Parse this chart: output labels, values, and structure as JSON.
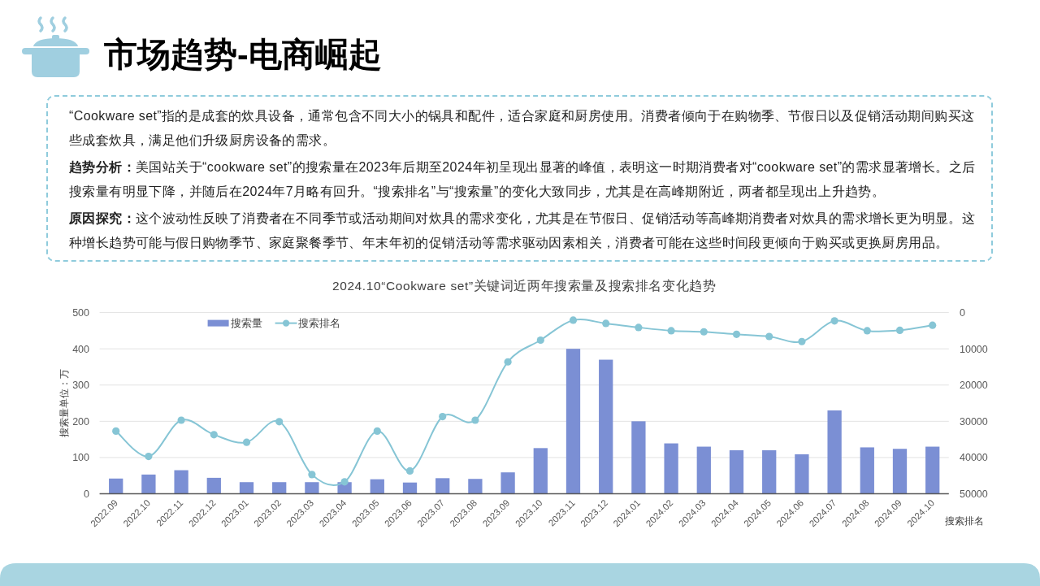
{
  "chart_data": [
    {
      "type": "other",
      "title": "市场趋势-电商崛起",
      "annotations": [
        "“Cookware set”指的是成套的炊具设备，通常包含不同大小的锅具和配件，适合家庭和厨房使用。消费者倾向于在购物季、节假日以及促销活动期间购买这些成套炊具，满足他们升级厨房设备的需求。",
        "趋势分析：美国站关于“cookware set”的搜索量在2023年后期至2024年初呈现出显著的峰值，表明这一时期消费者对“cookware set”的需求显著增长。之后搜索量有明显下降，并随后在2024年7月略有回升。“搜索排名”与“搜索量”的变化大致同步，尤其是在高峰期附近，两者都呈现出上升趋势。",
        "原因探究：这个波动性反映了消费者在不同季节或活动期间对炊具的需求变化，尤其是在节假日、促销活动等高峰期消费者对炊具的需求增长更为明显。这种增长趋势可能与假日购物季节、家庭聚餐季节、年末年初的促销活动等需求驱动因素相关，消费者可能在这些时间段更倾向于购买或更换厨房用品。"
      ]
    },
    {
      "type": "bar",
      "title": "2024.10“Cookware set”关键词近两年搜索量及搜索排名变化趋势",
      "categories": [
        "2022.09",
        "2022.10",
        "2022.11",
        "2022.12",
        "2023.01",
        "2023.02",
        "2023.03",
        "2023.04",
        "2023.05",
        "2023.06",
        "2023.07",
        "2023.08",
        "2023.09",
        "2023.10",
        "2023.11",
        "2023.12",
        "2024.01",
        "2024.02",
        "2024.03",
        "2024.04",
        "2024.05",
        "2024.06",
        "2024.07",
        "2024.08",
        "2024.09",
        "2024.10"
      ],
      "series": [
        {
          "name": "搜索量",
          "color": "#7b8fd4",
          "values": [
            42,
            53,
            65,
            44,
            32,
            32,
            32,
            32,
            40,
            31,
            43,
            41,
            59,
            126,
            400,
            370,
            200,
            139,
            130,
            120,
            120,
            109,
            230,
            128,
            124,
            130
          ]
        },
        {
          "name": "搜索排名",
          "type": "line",
          "axis": "y2",
          "color": "#86c5d5",
          "values": [
            32700,
            39700,
            29700,
            33700,
            35800,
            30100,
            44700,
            46700,
            32700,
            43700,
            28700,
            29700,
            13600,
            7600,
            2100,
            3000,
            4100,
            5000,
            5300,
            6000,
            6600,
            8000,
            2300,
            5000,
            4900,
            3500
          ]
        }
      ],
      "ylabel": "搜索量单位：万",
      "y2label": "搜索排名",
      "ylim": [
        0,
        500
      ],
      "yticks": [
        0,
        100,
        200,
        300,
        400,
        500
      ],
      "y2lim": [
        50000,
        0
      ],
      "y2ticks": [
        0,
        10000,
        20000,
        30000,
        40000,
        50000
      ],
      "grid": "y",
      "legend": "top left",
      "marker": "circle",
      "line_style": "solid"
    }
  ]
}
